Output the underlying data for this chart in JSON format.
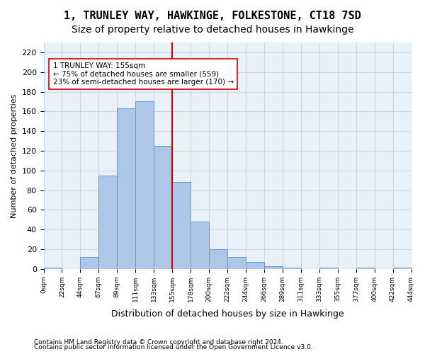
{
  "title": "1, TRUNLEY WAY, HAWKINGE, FOLKESTONE, CT18 7SD",
  "subtitle": "Size of property relative to detached houses in Hawkinge",
  "xlabel": "Distribution of detached houses by size in Hawkinge",
  "ylabel": "Number of detached properties",
  "bar_values": [
    1,
    0,
    12,
    95,
    163,
    170,
    125,
    88,
    48,
    20,
    12,
    7,
    3,
    1,
    0,
    1,
    0,
    1,
    0,
    1
  ],
  "bin_labels": [
    "0sqm",
    "22sqm",
    "44sqm",
    "67sqm",
    "89sqm",
    "111sqm",
    "133sqm",
    "155sqm",
    "178sqm",
    "200sqm",
    "222sqm",
    "244sqm",
    "266sqm",
    "289sqm",
    "311sqm",
    "333sqm",
    "355sqm",
    "377sqm",
    "400sqm",
    "422sqm",
    "444sqm"
  ],
  "bar_color": "#aec6e8",
  "bar_edge_color": "#5a9fd4",
  "grid_color": "#c8d8e8",
  "background_color": "#e8f0f8",
  "vline_x": 7,
  "vline_color": "#cc0000",
  "annotation_text": "1 TRUNLEY WAY: 155sqm\n← 75% of detached houses are smaller (559)\n23% of semi-detached houses are larger (170) →",
  "annotation_box_color": "#ffffff",
  "annotation_box_edge": "#cc0000",
  "ylim": [
    0,
    230
  ],
  "yticks": [
    0,
    20,
    40,
    60,
    80,
    100,
    120,
    140,
    160,
    180,
    200,
    220
  ],
  "footer1": "Contains HM Land Registry data © Crown copyright and database right 2024.",
  "footer2": "Contains public sector information licensed under the Open Government Licence v3.0.",
  "title_fontsize": 11,
  "subtitle_fontsize": 10
}
